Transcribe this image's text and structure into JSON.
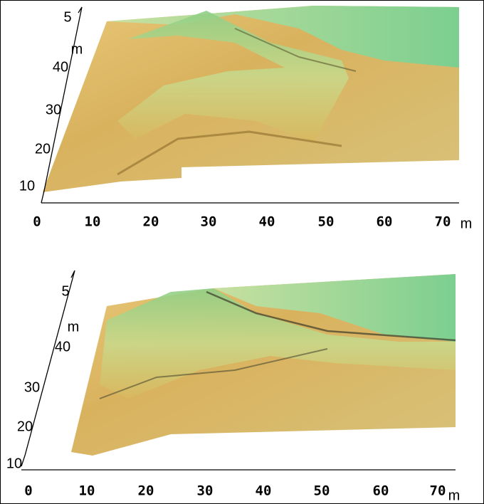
{
  "panels": [
    {
      "y_ticks": [
        5,
        40,
        30,
        20,
        10
      ],
      "y_unit": "m",
      "x_ticks": [
        0,
        10,
        20,
        30,
        40,
        50,
        60,
        70
      ],
      "x_unit": "m"
    },
    {
      "y_ticks": [
        5,
        40,
        30,
        20,
        10
      ],
      "y_unit": "m",
      "x_ticks": [
        0,
        10,
        20,
        30,
        40,
        50,
        60,
        70
      ],
      "x_unit": "m"
    }
  ]
}
